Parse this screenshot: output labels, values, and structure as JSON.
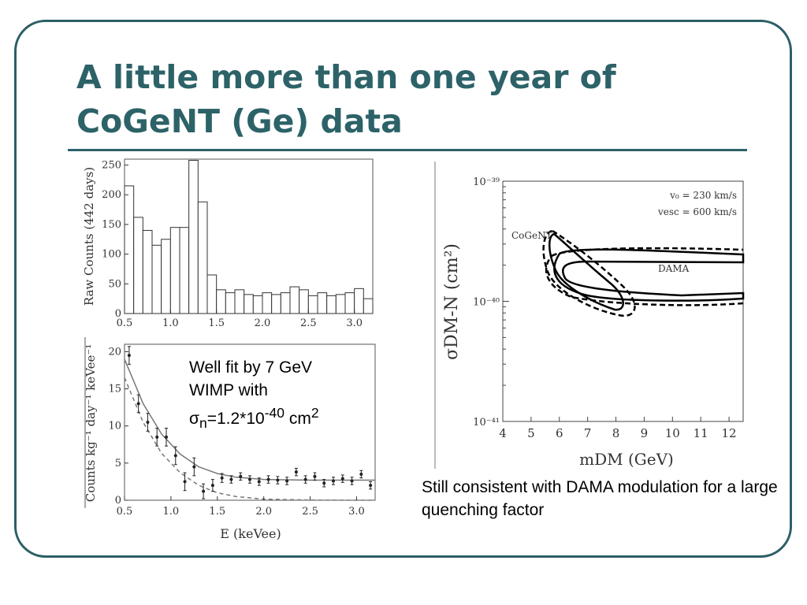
{
  "slide": {
    "title_line1": "A little more than one year of",
    "title_line2": "CoGeNT (Ge) data",
    "fit_note_line1": "Well fit by 7 GeV",
    "fit_note_line2": "WIMP with",
    "fit_sigma": "σ",
    "fit_sub": "n",
    "fit_value": "=1.2*10",
    "fit_exp": "-40",
    "fit_unit": " cm",
    "fit_unit_exp": "2",
    "dama_note": "Still consistent with DAMA modulation for a large quenching factor"
  },
  "colors": {
    "accent": "#2c6268"
  },
  "chart_data": [
    {
      "type": "bar",
      "ylabel": "Raw Counts (442 days)",
      "bin_edges_start": 0.5,
      "bin_width": 0.1,
      "bins": 27,
      "values": [
        215,
        162,
        140,
        115,
        125,
        145,
        145,
        258,
        188,
        65,
        40,
        35,
        40,
        32,
        30,
        35,
        32,
        35,
        45,
        40,
        30,
        35,
        30,
        32,
        35,
        42,
        25
      ],
      "xlim": [
        0.5,
        3.2
      ],
      "ylim": [
        0,
        260
      ],
      "xticks": [
        "0.5",
        "1.0",
        "1.5",
        "2.0",
        "2.5",
        "3.0"
      ],
      "yticks": [
        "0",
        "50",
        "100",
        "150",
        "200",
        "250"
      ]
    },
    {
      "type": "scatter",
      "xlabel": "E (keVee)",
      "ylabel": "Counts kg⁻¹ day⁻¹ keVee⁻¹",
      "x": [
        0.55,
        0.65,
        0.75,
        0.85,
        0.95,
        1.05,
        1.15,
        1.25,
        1.35,
        1.45,
        1.55,
        1.65,
        1.75,
        1.85,
        1.95,
        2.05,
        2.15,
        2.25,
        2.35,
        2.45,
        2.55,
        2.65,
        2.75,
        2.85,
        2.95,
        3.05,
        3.15
      ],
      "y": [
        19.5,
        13,
        10.5,
        8.5,
        8.5,
        6,
        2.5,
        4.5,
        1.2,
        2,
        3,
        2.8,
        3.2,
        2.8,
        2.5,
        2.8,
        2.7,
        2.6,
        3.8,
        2.8,
        3.2,
        2.3,
        2.6,
        2.9,
        2.6,
        3.5,
        2
      ],
      "err": [
        1.2,
        1.2,
        1.2,
        1.2,
        1.2,
        1.2,
        1.2,
        1.2,
        1.0,
        0.8,
        0.6,
        0.5,
        0.5,
        0.5,
        0.5,
        0.5,
        0.5,
        0.5,
        0.5,
        0.5,
        0.5,
        0.5,
        0.5,
        0.5,
        0.5,
        0.5,
        0.5
      ],
      "curves": [
        {
          "style": "solid",
          "x": [
            0.5,
            0.7,
            0.9,
            1.1,
            1.3,
            1.5,
            1.7,
            2.0,
            2.5,
            3.0,
            3.2
          ],
          "y": [
            19.0,
            13.0,
            8.9,
            6.2,
            4.5,
            3.6,
            3.1,
            2.8,
            2.7,
            2.7,
            2.7
          ]
        },
        {
          "style": "dashed",
          "x": [
            0.5,
            0.7,
            0.9,
            1.1,
            1.3,
            1.5,
            1.7,
            2.0,
            2.5,
            3.0,
            3.2
          ],
          "y": [
            16.5,
            10.5,
            6.3,
            3.7,
            2.0,
            1.0,
            0.5,
            0.15,
            0.02,
            0,
            0
          ]
        }
      ],
      "xlim": [
        0.5,
        3.2
      ],
      "ylim": [
        0,
        21
      ],
      "xticks": [
        "0.5",
        "1.0",
        "1.5",
        "2.0",
        "2.5",
        "3.0"
      ],
      "yticks": [
        "0",
        "5",
        "10",
        "15",
        "20"
      ]
    },
    {
      "type": "line",
      "xlabel": "mDM (GeV)",
      "ylabel": "σDM-N (cm²)",
      "xlim": [
        4,
        12.5
      ],
      "ylim_log10": [
        -41,
        -39
      ],
      "xticks": [
        "4",
        "5",
        "6",
        "7",
        "8",
        "9",
        "10",
        "11",
        "12"
      ],
      "yticks": [
        "10⁻⁴¹",
        "10⁻⁴⁰",
        "10⁻³⁹"
      ],
      "legend": {
        "line1": "v₀ = 230 km/s",
        "line2": "vesc = 600 km/s",
        "placement": "top-right"
      },
      "region_labels": [
        "CoGeNT",
        "DAMA"
      ]
    }
  ]
}
